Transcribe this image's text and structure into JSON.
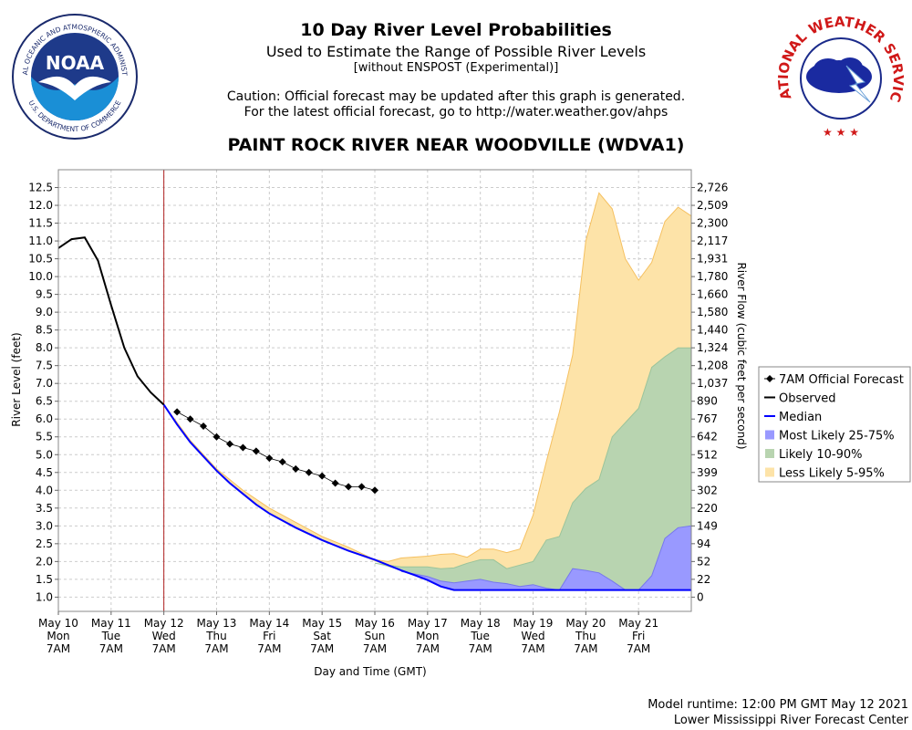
{
  "header": {
    "title": "10 Day River Level Probabilities",
    "subtitle": "Used to Estimate the Range of Possible River Levels",
    "note": "[without ENSPOST (Experimental)]",
    "caution_line1": "Caution: Official forecast may be updated after this graph is generated.",
    "caution_line2": "For the latest official forecast, go to http://water.weather.gov/ahps",
    "station": "PAINT ROCK RIVER NEAR WOODVILLE (WDVA1)"
  },
  "logos": {
    "noaa_text": "NOAA",
    "noaa_ring": "NATIONAL OCEANIC AND ATMOSPHERIC ADMINISTRATION",
    "noaa_ring_bottom": "U.S. DEPARTMENT OF COMMERCE",
    "nws_ring": "NATIONAL WEATHER SERVICE"
  },
  "footer": {
    "runtime": "Model runtime: 12:00 PM GMT May 12 2021",
    "center": "Lower Mississippi River Forecast Center"
  },
  "colors": {
    "observed": "#000000",
    "median": "#0000ff",
    "band_25_75": "#9999ff",
    "band_10_90": "#b8d4b0",
    "band_5_95": "#fde3a8",
    "band_5_95_line": "#f5c060",
    "band_10_90_line": "#9bc49b",
    "now_line": "#b02020",
    "grid": "#cccccc"
  },
  "chart_data": {
    "type": "line",
    "title": "PAINT ROCK RIVER NEAR WOODVILLE (WDVA1)",
    "xlabel": "Day and Time (GMT)",
    "ylabel": "River Level (feet)",
    "y2label": "River Flow (cubic feet per second)",
    "xlim": [
      0,
      12
    ],
    "ylim": [
      0.6,
      13.0
    ],
    "x_unit": "days since May 10 7AM GMT",
    "x_ticks": [
      {
        "x": 0,
        "lines": [
          "May 10",
          "Mon",
          "7AM"
        ]
      },
      {
        "x": 1,
        "lines": [
          "May 11",
          "Tue",
          "7AM"
        ]
      },
      {
        "x": 2,
        "lines": [
          "May 12",
          "Wed",
          "7AM"
        ]
      },
      {
        "x": 3,
        "lines": [
          "May 13",
          "Thu",
          "7AM"
        ]
      },
      {
        "x": 4,
        "lines": [
          "May 14",
          "Fri",
          "7AM"
        ]
      },
      {
        "x": 5,
        "lines": [
          "May 15",
          "Sat",
          "7AM"
        ]
      },
      {
        "x": 6,
        "lines": [
          "May 16",
          "Sun",
          "7AM"
        ]
      },
      {
        "x": 7,
        "lines": [
          "May 17",
          "Mon",
          "7AM"
        ]
      },
      {
        "x": 8,
        "lines": [
          "May 18",
          "Tue",
          "7AM"
        ]
      },
      {
        "x": 9,
        "lines": [
          "May 19",
          "Wed",
          "7AM"
        ]
      },
      {
        "x": 10,
        "lines": [
          "May 20",
          "Thu",
          "7AM"
        ]
      },
      {
        "x": 11,
        "lines": [
          "May 21",
          "Fri",
          "7AM"
        ]
      }
    ],
    "y_ticks": [
      "1.0",
      "1.5",
      "2.0",
      "2.5",
      "3.0",
      "3.5",
      "4.0",
      "4.5",
      "5.0",
      "5.5",
      "6.0",
      "6.5",
      "7.0",
      "7.5",
      "8.0",
      "8.5",
      "9.0",
      "9.5",
      "10.0",
      "10.5",
      "11.0",
      "11.5",
      "12.0",
      "12.5"
    ],
    "flow_ticks": [
      {
        "stage": 1.0,
        "label": "0"
      },
      {
        "stage": 1.5,
        "label": "22"
      },
      {
        "stage": 2.0,
        "label": "52"
      },
      {
        "stage": 2.5,
        "label": "94"
      },
      {
        "stage": 3.0,
        "label": "149"
      },
      {
        "stage": 3.5,
        "label": "220"
      },
      {
        "stage": 4.0,
        "label": "302"
      },
      {
        "stage": 4.5,
        "label": "399"
      },
      {
        "stage": 5.0,
        "label": "512"
      },
      {
        "stage": 5.5,
        "label": "642"
      },
      {
        "stage": 6.0,
        "label": "767"
      },
      {
        "stage": 6.5,
        "label": "890"
      },
      {
        "stage": 7.0,
        "label": "1,037"
      },
      {
        "stage": 7.5,
        "label": "1,208"
      },
      {
        "stage": 8.0,
        "label": "1,324"
      },
      {
        "stage": 8.5,
        "label": "1,440"
      },
      {
        "stage": 9.0,
        "label": "1,580"
      },
      {
        "stage": 9.5,
        "label": "1,660"
      },
      {
        "stage": 10.0,
        "label": "1,780"
      },
      {
        "stage": 10.5,
        "label": "1,931"
      },
      {
        "stage": 11.0,
        "label": "2,117"
      },
      {
        "stage": 11.5,
        "label": "2,300"
      },
      {
        "stage": 12.0,
        "label": "2,509"
      },
      {
        "stage": 12.5,
        "label": "2,726"
      }
    ],
    "now_x": 2.0,
    "legend": [
      {
        "key": "forecast",
        "label": "7AM Official Forecast"
      },
      {
        "key": "observed",
        "label": "Observed"
      },
      {
        "key": "median",
        "label": "Median"
      },
      {
        "key": "band_25_75",
        "label": "Most Likely 25-75%"
      },
      {
        "key": "band_10_90",
        "label": "Likely 10-90%"
      },
      {
        "key": "band_5_95",
        "label": "Less Likely 5-95%"
      }
    ],
    "legend_position": "right",
    "observed": [
      [
        0.0,
        10.8
      ],
      [
        0.25,
        11.05
      ],
      [
        0.5,
        11.1
      ],
      [
        0.75,
        10.45
      ],
      [
        1.0,
        9.2
      ],
      [
        1.25,
        8.0
      ],
      [
        1.5,
        7.2
      ],
      [
        1.75,
        6.75
      ],
      [
        2.0,
        6.4
      ]
    ],
    "median": [
      [
        2.0,
        6.4
      ],
      [
        2.25,
        5.85
      ],
      [
        2.5,
        5.35
      ],
      [
        2.75,
        4.95
      ],
      [
        3.0,
        4.55
      ],
      [
        3.25,
        4.2
      ],
      [
        3.5,
        3.9
      ],
      [
        3.75,
        3.6
      ],
      [
        4.0,
        3.35
      ],
      [
        4.5,
        2.95
      ],
      [
        5.0,
        2.6
      ],
      [
        5.5,
        2.3
      ],
      [
        6.0,
        2.05
      ],
      [
        6.5,
        1.75
      ],
      [
        6.75,
        1.62
      ],
      [
        7.0,
        1.48
      ],
      [
        7.25,
        1.3
      ],
      [
        7.5,
        1.2
      ],
      [
        12.0,
        1.2
      ]
    ],
    "official_forecast": [
      [
        2.25,
        6.2
      ],
      [
        2.5,
        6.0
      ],
      [
        2.75,
        5.8
      ],
      [
        3.0,
        5.5
      ],
      [
        3.25,
        5.3
      ],
      [
        3.5,
        5.2
      ],
      [
        3.75,
        5.1
      ],
      [
        4.0,
        4.9
      ],
      [
        4.25,
        4.8
      ],
      [
        4.5,
        4.6
      ],
      [
        4.75,
        4.5
      ],
      [
        5.0,
        4.4
      ],
      [
        5.25,
        4.2
      ],
      [
        5.5,
        4.1
      ],
      [
        5.75,
        4.1
      ],
      [
        6.0,
        4.0
      ]
    ],
    "band_5_95": {
      "x": [
        2.0,
        2.5,
        3.0,
        3.5,
        4.0,
        4.5,
        5.0,
        5.5,
        6.0,
        6.25,
        6.5,
        7.0,
        7.25,
        7.5,
        7.75,
        8.0,
        8.25,
        8.5,
        8.75,
        9.0,
        9.25,
        9.5,
        9.75,
        10.0,
        10.25,
        10.5,
        10.75,
        11.0,
        11.25,
        11.5,
        11.75,
        12.0
      ],
      "high": [
        6.4,
        5.4,
        4.6,
        4.0,
        3.5,
        3.1,
        2.7,
        2.4,
        2.05,
        2.0,
        2.1,
        2.15,
        2.2,
        2.22,
        2.12,
        2.35,
        2.35,
        2.25,
        2.35,
        3.3,
        4.8,
        6.2,
        7.8,
        11.0,
        12.35,
        11.9,
        10.5,
        9.9,
        10.4,
        11.55,
        11.95,
        11.7
      ],
      "low": [
        6.4,
        5.35,
        4.55,
        3.9,
        3.35,
        2.95,
        2.6,
        2.3,
        2.0,
        1.88,
        1.78,
        1.55,
        1.35,
        1.2,
        1.2,
        1.2,
        1.2,
        1.2,
        1.2,
        1.2,
        1.2,
        1.2,
        1.2,
        1.2,
        1.2,
        1.2,
        1.2,
        1.2,
        1.2,
        1.2,
        1.2,
        1.2
      ]
    },
    "band_10_90": {
      "x": [
        6.0,
        6.5,
        7.0,
        7.25,
        7.5,
        7.75,
        8.0,
        8.25,
        8.5,
        8.75,
        9.0,
        9.25,
        9.5,
        9.75,
        10.0,
        10.25,
        10.5,
        10.75,
        11.0,
        11.25,
        11.5,
        11.75,
        12.0
      ],
      "high": [
        1.95,
        1.85,
        1.85,
        1.8,
        1.82,
        1.95,
        2.05,
        2.05,
        1.8,
        1.9,
        2.0,
        2.6,
        2.7,
        3.65,
        4.05,
        4.3,
        5.5,
        5.9,
        6.3,
        7.45,
        7.75,
        8.0,
        8.0
      ],
      "low": [
        1.95,
        1.75,
        1.5,
        1.3,
        1.2,
        1.2,
        1.2,
        1.2,
        1.2,
        1.2,
        1.2,
        1.2,
        1.2,
        1.2,
        1.2,
        1.2,
        1.2,
        1.2,
        1.2,
        1.2,
        1.2,
        1.2,
        1.2
      ]
    },
    "band_25_75": {
      "x": [
        6.5,
        7.0,
        7.25,
        7.5,
        7.75,
        8.0,
        8.25,
        8.5,
        8.75,
        9.0,
        9.25,
        9.5,
        9.75,
        10.0,
        10.25,
        10.5,
        10.75,
        11.0,
        11.25,
        11.5,
        11.75,
        12.0
      ],
      "high": [
        1.72,
        1.58,
        1.45,
        1.4,
        1.45,
        1.5,
        1.42,
        1.38,
        1.3,
        1.35,
        1.25,
        1.2,
        1.8,
        1.75,
        1.68,
        1.45,
        1.2,
        1.2,
        1.6,
        2.65,
        2.95,
        3.0
      ],
      "low": [
        1.72,
        1.5,
        1.3,
        1.2,
        1.2,
        1.2,
        1.2,
        1.2,
        1.2,
        1.2,
        1.2,
        1.2,
        1.2,
        1.2,
        1.2,
        1.2,
        1.2,
        1.2,
        1.2,
        1.2,
        1.2,
        1.2
      ]
    }
  }
}
